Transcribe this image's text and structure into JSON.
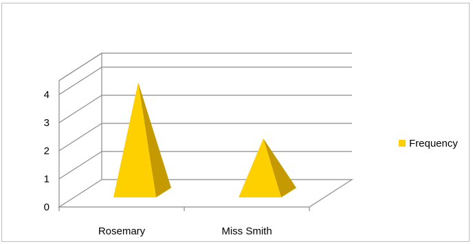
{
  "chart_data": {
    "type": "bar",
    "bar_shape": "pyramid",
    "three_d": true,
    "categories": [
      "Rosemary",
      "Miss Smith"
    ],
    "series": [
      {
        "name": "Frequency",
        "values": [
          4,
          2
        ],
        "color": "#FFD000",
        "side_color": "#C49A00"
      }
    ],
    "ylim": [
      0,
      4
    ],
    "yticks": [
      "0",
      "1",
      "2",
      "3",
      "4"
    ],
    "grid": true,
    "legend_position": "right",
    "title": "",
    "xlabel": "",
    "ylabel": ""
  }
}
